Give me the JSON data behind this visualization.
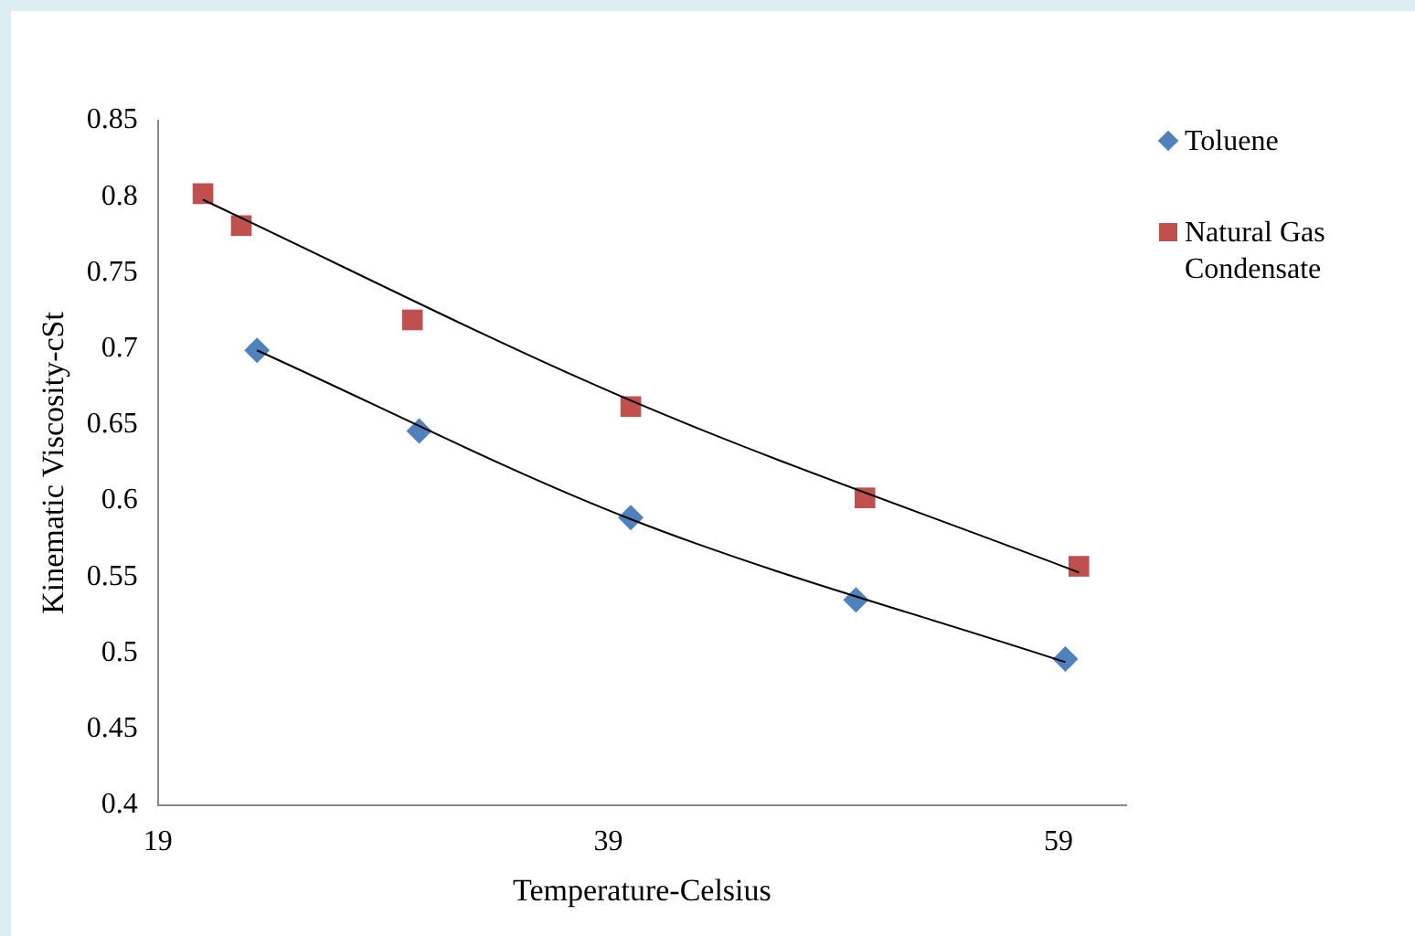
{
  "chart_data": {
    "type": "scatter",
    "xlabel": "Temperature-Celsius",
    "ylabel": "Kinematic Viscosity-cSt",
    "xlim": [
      19,
      62
    ],
    "xticks": [
      19,
      39,
      59
    ],
    "ylim": [
      0.4,
      0.85
    ],
    "yticks": [
      0.4,
      0.45,
      0.5,
      0.55,
      0.6,
      0.65,
      0.7,
      0.75,
      0.8,
      0.85
    ],
    "grid": false,
    "legend": "top right",
    "series": [
      {
        "name": "Toluene",
        "color": "#4f81bd",
        "marker": "diamond",
        "x": [
          23.4,
          30.6,
          40,
          50,
          59.3
        ],
        "values": [
          0.699,
          0.646,
          0.589,
          0.535,
          0.496
        ]
      },
      {
        "name": "Natural Gas Condensate",
        "color": "#c0504d",
        "marker": "square",
        "x": [
          21,
          22.7,
          30.3,
          40,
          50.4,
          59.9
        ],
        "values": [
          0.802,
          0.781,
          0.719,
          0.662,
          0.602,
          0.557
        ]
      },
      {
        "type": "line",
        "color": "#000000",
        "marker": "none",
        "x": [
          23.4,
          40,
          59.3
        ],
        "values": [
          0.699,
          0.588,
          0.494
        ]
      },
      {
        "type": "line",
        "color": "#000000",
        "marker": "none",
        "x": [
          21,
          40,
          59.9
        ],
        "values": [
          0.798,
          0.666,
          0.553
        ]
      }
    ]
  }
}
